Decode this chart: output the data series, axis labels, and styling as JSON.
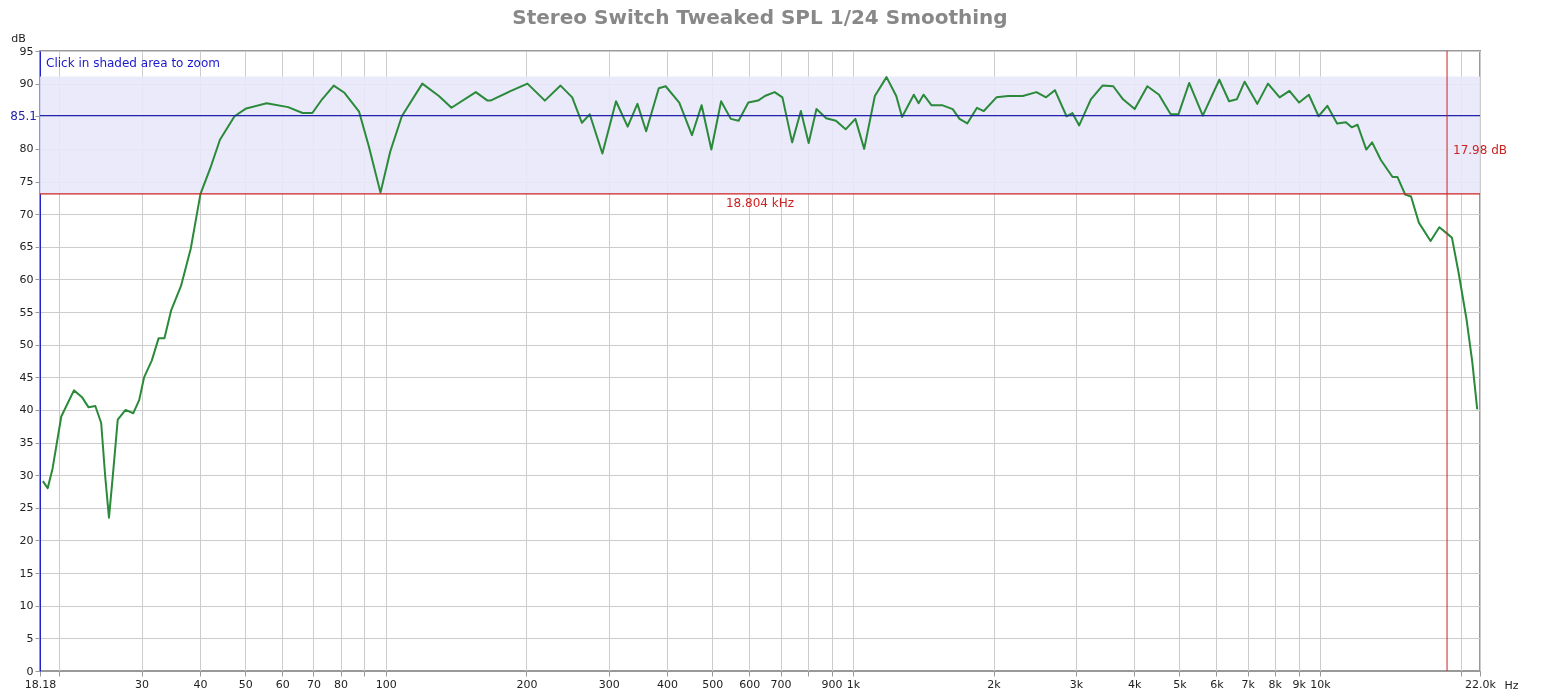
{
  "chart_data": {
    "type": "line",
    "title": "Stereo Switch Tweaked SPL 1/24 Smoothing",
    "xlabel": "Hz",
    "ylabel": "dB",
    "log": "x",
    "grid": true,
    "legend": false,
    "xlim": [
      18.18,
      22000
    ],
    "ylim": [
      0,
      95
    ],
    "xticks": [
      {
        "value": 18.18,
        "label": "18.18"
      },
      {
        "value": 20,
        "label": null
      },
      30,
      40,
      50,
      60,
      70,
      80,
      {
        "value": 90,
        "label": null
      },
      100,
      200,
      300,
      400,
      500,
      600,
      700,
      {
        "value": 800,
        "label": null
      },
      900,
      {
        "value": 1000,
        "label": "1k"
      },
      {
        "value": 2000,
        "label": "2k"
      },
      {
        "value": 3000,
        "label": "3k"
      },
      {
        "value": 4000,
        "label": "4k"
      },
      {
        "value": 5000,
        "label": "5k"
      },
      {
        "value": 6000,
        "label": "6k"
      },
      {
        "value": 7000,
        "label": "7k"
      },
      {
        "value": 8000,
        "label": "8k"
      },
      {
        "value": 9000,
        "label": "9k"
      },
      {
        "value": 10000,
        "label": "10k"
      },
      {
        "value": 20000,
        "label": null
      },
      {
        "value": 22000,
        "label": "22.0k"
      }
    ],
    "yticks": [
      0,
      5,
      10,
      15,
      20,
      25,
      30,
      35,
      40,
      45,
      50,
      55,
      60,
      65,
      70,
      75,
      80,
      {
        "value": 85,
        "label": null
      },
      90,
      95
    ],
    "x": [
      18.44,
      18.88,
      19.34,
      20.19,
      21.49,
      22.34,
      23.1,
      23.88,
      24.58,
      25.06,
      25.54,
      26.04,
      26.67,
      27.72,
      28.8,
      29.64,
      30.37,
      31.55,
      32.63,
      33.57,
      34.72,
      36.43,
      38.22,
      40.1,
      42.07,
      44.14,
      47.43,
      50.24,
      55.57,
      61.76,
      66.35,
      69.61,
      73.03,
      77.35,
      81.55,
      87.64,
      91.94,
      97.39,
      102.2,
      108.2,
      119.7,
      129.9,
      138.2,
      155.8,
      165.1,
      167.5,
      184.3,
      201,
      219,
      236.6,
      250.6,
      262.9,
      273.2,
      290.8,
      311,
      329.4,
      345.6,
      360.8,
      384,
      397.2,
      424.8,
      452.2,
      474.3,
      497.6,
      522.1,
      547.7,
      569.2,
      597.1,
      626.5,
      647.8,
      679.7,
      706.3,
      741,
      773.6,
      803.9,
      835.4,
      876.4,
      919.4,
      964.7,
      1012,
      1057,
      1114,
      1180,
      1238,
      1274,
      1350,
      1382,
      1416,
      1472,
      1551,
      1635,
      1691,
      1757,
      1843,
      1906,
      2029,
      2149,
      2310,
      2470,
      2591,
      2706,
      2866,
      2950,
      3050,
      3231,
      3422,
      3608,
      3786,
      4010,
      4268,
      4521,
      4788,
      4976,
      5246,
      5610,
      6086,
      6386,
      6635,
      6896,
      7338,
      7736,
      8194,
      8599,
      9020,
      9463,
      9928,
      10366,
      10876,
      11357,
      11689,
      12030,
      12560,
      12927,
      13495,
      14295,
      14642,
      15216,
      15660,
      16274,
      17242,
      18003,
      18793,
      19157,
      19811,
      20584,
      21184,
      21700
    ],
    "series": [
      {
        "color": "#2a8a3a",
        "values": [
          29.1,
          28,
          31,
          39,
          43,
          42,
          40.4,
          40.6,
          38,
          30,
          23.5,
          30,
          38.5,
          40,
          39.5,
          41.5,
          45,
          47.6,
          51,
          51,
          55.3,
          59,
          64.7,
          73.1,
          77,
          81.4,
          85,
          86.2,
          87,
          86.4,
          85.5,
          85.5,
          87.6,
          89.7,
          88.6,
          85.7,
          80.4,
          73.3,
          79.6,
          85,
          90,
          88.1,
          86.3,
          88.7,
          87.4,
          87.4,
          88.8,
          90,
          87.4,
          89.7,
          87.9,
          84,
          85.3,
          79.3,
          87.3,
          83.4,
          86.9,
          82.7,
          89.3,
          89.6,
          87.1,
          82.1,
          86.7,
          79.9,
          87.3,
          84.6,
          84.3,
          87.1,
          87.4,
          88.1,
          88.7,
          87.9,
          81,
          85.8,
          80.9,
          86.1,
          84.7,
          84.3,
          83,
          84.6,
          80,
          88.1,
          91,
          88.1,
          84.9,
          88.3,
          87,
          88.3,
          86.7,
          86.7,
          86.1,
          84.6,
          83.9,
          86.3,
          85.8,
          87.9,
          88.1,
          88.1,
          88.7,
          87.9,
          89,
          85,
          85.5,
          83.6,
          87.6,
          89.7,
          89.6,
          87.6,
          86.1,
          89.6,
          88.3,
          85.3,
          85.3,
          90.1,
          85.1,
          90.6,
          87.3,
          87.6,
          90.3,
          86.9,
          90,
          87.9,
          88.9,
          87.1,
          88.3,
          85,
          86.6,
          83.9,
          84.1,
          83.3,
          83.7,
          79.9,
          81,
          78.3,
          75.7,
          75.7,
          73,
          72.7,
          68.7,
          65.9,
          68,
          66.9,
          66.4,
          60.9,
          53.9,
          47.3,
          40.1
        ]
      }
    ],
    "bands": [
      {
        "axis": "y",
        "from": 73.1,
        "to": 91.1,
        "label": "Click in shaded area to zoom",
        "color": "#e8e8fa"
      }
    ],
    "ref_lines": [
      {
        "axis": "y",
        "value": 85.1,
        "label": "85.1",
        "color": "#2222aa"
      },
      {
        "axis": "y",
        "value": 73.1,
        "label": "18.804 kHz",
        "color": "#cc2222"
      },
      {
        "axis": "x",
        "value": 18700,
        "label": "17.98 dB",
        "color": "#cc2222"
      }
    ]
  }
}
